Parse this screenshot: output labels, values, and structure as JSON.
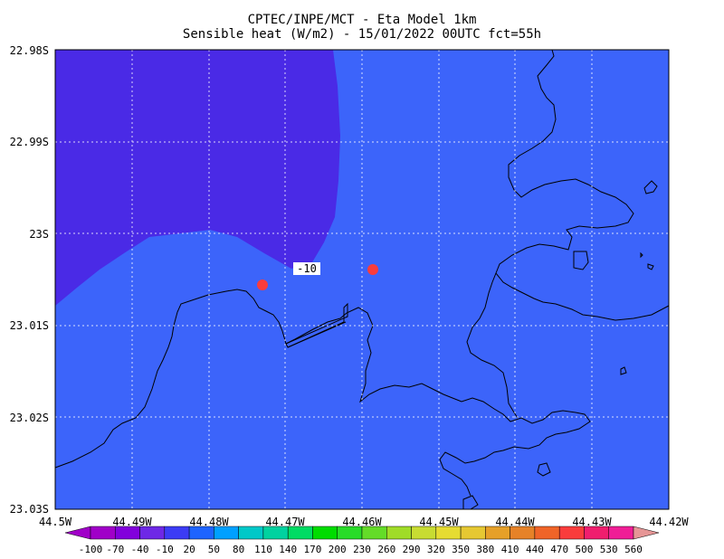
{
  "title_line1": "CPTEC/INPE/MCT -  Eta Model 1km",
  "title_line2": "Sensible heat (W/m2) - 15/01/2022 00UTC fct=55h",
  "lat_ticks": [
    "22.98S",
    "22.99S",
    "23S",
    "23.01S",
    "23.02S",
    "23.03S"
  ],
  "lon_ticks": [
    "44.5W",
    "44.49W",
    "44.48W",
    "44.47W",
    "44.46W",
    "44.45W",
    "44.44W",
    "44.43W",
    "44.42W"
  ],
  "contour_label": "-10",
  "colorbar": {
    "labels": [
      "-100",
      "-70",
      "-40",
      "-10",
      "20",
      "50",
      "80",
      "110",
      "140",
      "170",
      "200",
      "230",
      "260",
      "290",
      "320",
      "350",
      "380",
      "410",
      "440",
      "470",
      "500",
      "530",
      "560"
    ],
    "colors": [
      "#a000c8",
      "#8200dc",
      "#6e28e6",
      "#3c3cf5",
      "#1e64ff",
      "#00a0ff",
      "#00c8c8",
      "#00d2a0",
      "#00dc64",
      "#00dc00",
      "#28dc28",
      "#64dc28",
      "#a0dc28",
      "#c8dc32",
      "#e6dc32",
      "#e6c832",
      "#e6a028",
      "#e68228",
      "#f06428",
      "#fa3c3c",
      "#f01e6e",
      "#f01e96",
      "#e6aa"
    ]
  },
  "colors": {
    "field_main": "#3c64fa",
    "field_low": "#4a2ae6",
    "marker": "#fa3c3c",
    "coast": "#000000"
  }
}
